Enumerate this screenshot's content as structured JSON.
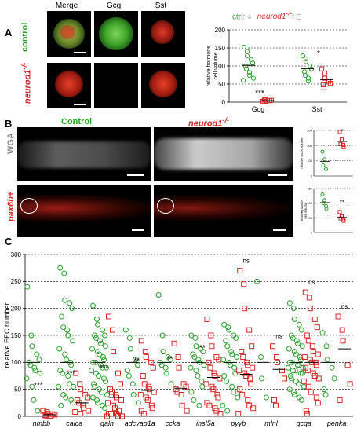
{
  "panels": {
    "a": {
      "letter": "A",
      "col_headers": [
        "Merge",
        "Gcg",
        "Sst"
      ],
      "row_labels": [
        "control",
        "neurod1"
      ],
      "row_label_sup": "-/-",
      "legend": {
        "ctrl_label": "ctrl:",
        "mut_label": "neurod1",
        "mut_sup": "-/-",
        "ctrl_color": "#2ca02c",
        "mut_color": "#d62728"
      }
    },
    "b": {
      "letter": "B",
      "col_headers": [
        "Control",
        "neurod1"
      ],
      "col_header_sup": "-/-",
      "row_labels": [
        "WGA",
        "pax6b+"
      ]
    },
    "c": {
      "letter": "C"
    }
  },
  "chart_data": [
    {
      "id": "A-hormone",
      "type": "scatter",
      "ylabel": "relative hormone cell volume",
      "categories": [
        "Gcg",
        "Sst"
      ],
      "ylim": [
        0,
        200
      ],
      "yticks": [
        0,
        50,
        100,
        150,
        200
      ],
      "grid": true,
      "series": [
        {
          "name": "ctrl",
          "color": "#2ca02c",
          "marker": "circle-open",
          "points": [
            [
              0,
              152
            ],
            [
              0,
              140
            ],
            [
              0,
              128
            ],
            [
              0,
              118
            ],
            [
              0,
              108
            ],
            [
              0,
              100
            ],
            [
              0,
              92
            ],
            [
              0,
              82
            ],
            [
              0,
              74
            ],
            [
              0,
              66
            ],
            [
              0,
              60
            ],
            [
              1,
              128
            ],
            [
              1,
              120
            ],
            [
              1,
              112
            ],
            [
              1,
              100
            ],
            [
              1,
              92
            ],
            [
              1,
              84
            ],
            [
              1,
              74
            ],
            [
              1,
              66
            ],
            [
              1,
              58
            ]
          ]
        },
        {
          "name": "neurod1-/-",
          "color": "#d62728",
          "marker": "square-open",
          "points": [
            [
              0,
              2
            ],
            [
              0,
              2
            ],
            [
              0,
              3
            ],
            [
              0,
              4
            ],
            [
              0,
              5
            ],
            [
              0,
              6
            ],
            [
              0,
              8
            ],
            [
              1,
              92
            ],
            [
              1,
              80
            ],
            [
              1,
              66
            ],
            [
              1,
              58
            ],
            [
              1,
              52
            ],
            [
              1,
              48
            ],
            [
              1,
              40
            ]
          ]
        }
      ],
      "annotations": [
        {
          "cat": 0,
          "y": 18,
          "text": "***"
        },
        {
          "cat": 1,
          "y": 128,
          "text": "*"
        }
      ]
    },
    {
      "id": "B-wga",
      "type": "scatter",
      "ylabel": "relative WGA volume",
      "ylim": [
        0,
        300
      ],
      "yticks": [
        0,
        100,
        200,
        300
      ],
      "series": [
        {
          "name": "ctrl",
          "color": "#2ca02c",
          "marker": "circle-open",
          "points": [
            [
              0,
              160
            ],
            [
              0,
              110
            ],
            [
              0,
              70
            ],
            [
              0,
              45
            ]
          ]
        },
        {
          "name": "neurod1-/-",
          "color": "#d62728",
          "marker": "square-open",
          "points": [
            [
              1,
              290
            ],
            [
              1,
              240
            ],
            [
              1,
              210
            ],
            [
              1,
              205
            ],
            [
              1,
              190
            ]
          ]
        }
      ],
      "annotations": [
        {
          "cat": 1,
          "y": 330,
          "text": "*"
        }
      ]
    },
    {
      "id": "B-pax6b",
      "type": "scatter",
      "ylabel": "relative pax6b+ cell volume",
      "ylim": [
        0,
        150
      ],
      "yticks": [
        0,
        50,
        100,
        150
      ],
      "series": [
        {
          "name": "ctrl",
          "color": "#2ca02c",
          "marker": "circle-open",
          "points": [
            [
              0,
              130
            ],
            [
              0,
              110
            ],
            [
              0,
              100
            ],
            [
              0,
              90
            ],
            [
              0,
              80
            ]
          ]
        },
        {
          "name": "neurod1-/-",
          "color": "#d62728",
          "marker": "square-open",
          "points": [
            [
              1,
              70
            ],
            [
              1,
              55
            ],
            [
              1,
              48
            ],
            [
              1,
              45
            ],
            [
              1,
              40
            ]
          ]
        }
      ],
      "annotations": [
        {
          "cat": 1,
          "y": 95,
          "text": "**"
        }
      ]
    },
    {
      "id": "C-eec",
      "type": "scatter",
      "ylabel": "relative EEC number",
      "categories": [
        "nmbb",
        "calca",
        "galn",
        "adcyap1a",
        "ccka",
        "insl5a",
        "pyyb",
        "mlnl",
        "gcga",
        "penka"
      ],
      "ylim": [
        0,
        300
      ],
      "yticks": [
        0,
        50,
        100,
        150,
        200,
        250,
        300
      ],
      "grid": true,
      "ctrl_means": [
        100,
        100,
        100,
        100,
        100,
        100,
        100,
        100,
        100,
        100
      ],
      "mut_means": [
        3,
        25,
        35,
        48,
        52,
        72,
        78,
        87,
        100,
        125
      ],
      "significance": [
        "***",
        "***",
        "***",
        "**",
        "**",
        "**",
        "ns",
        "ns",
        "ns",
        "ns"
      ],
      "ctrl_points": [
        [
          240,
          150,
          130,
          115,
          105,
          100,
          95,
          90,
          85,
          80,
          70,
          55,
          30,
          10
        ],
        [
          275,
          265,
          215,
          210,
          200,
          185,
          165,
          160,
          150,
          140,
          125,
          115,
          105,
          100,
          95,
          85,
          80,
          75,
          60,
          55,
          55,
          40,
          35,
          30,
          25,
          20
        ],
        [
          205,
          180,
          170,
          160,
          150,
          150,
          145,
          140,
          135,
          130,
          125,
          120,
          115,
          110,
          105,
          100,
          100,
          95,
          90,
          90,
          85,
          80,
          75,
          70,
          65,
          60,
          55,
          50,
          45,
          40,
          35,
          30,
          25,
          20,
          15
        ],
        [
          160,
          145,
          125,
          105,
          95,
          85,
          75,
          60,
          40,
          25
        ],
        [
          225,
          150,
          120,
          110,
          105,
          100,
          95,
          90,
          80,
          60
        ],
        [
          150,
          145,
          130,
          125,
          120,
          115,
          110,
          105,
          100,
          95,
          90,
          85,
          75,
          65,
          55,
          45,
          30,
          20
        ],
        [
          170,
          165,
          160,
          150,
          145,
          140,
          130,
          120,
          115,
          110,
          105,
          100,
          95,
          90,
          80,
          75,
          65,
          55,
          45,
          35,
          20,
          10
        ],
        [
          250,
          110,
          70,
          35
        ],
        [
          210,
          200,
          180,
          170,
          160,
          150,
          145,
          140,
          135,
          130,
          125,
          120,
          115,
          110,
          105,
          100,
          100,
          95,
          95,
          90,
          90,
          85,
          85,
          80,
          80,
          75,
          70,
          65,
          60,
          55,
          50,
          45,
          40,
          35,
          30
        ],
        [
          155,
          130,
          105,
          90,
          70,
          50,
          40
        ]
      ],
      "mut_points": [
        [
          10,
          8,
          5,
          4,
          3,
          2,
          1,
          1,
          0
        ],
        [
          80,
          60,
          50,
          40,
          35,
          30,
          25,
          20,
          15,
          10,
          8,
          5
        ],
        [
          185,
          160,
          120,
          80,
          60,
          50,
          45,
          40,
          35,
          30,
          25,
          20,
          15,
          10,
          10,
          5,
          5,
          5,
          0,
          0,
          0
        ],
        [
          140,
          120,
          110,
          100,
          90,
          75,
          60,
          55,
          50,
          45,
          40,
          35,
          30,
          20,
          15,
          10,
          5
        ],
        [
          135,
          110,
          90,
          60,
          55,
          50,
          45,
          40,
          20,
          10
        ],
        [
          180,
          150,
          130,
          110,
          105,
          100,
          90,
          80,
          75,
          70,
          60,
          55,
          50,
          40,
          35,
          25,
          20,
          15,
          10,
          5
        ],
        [
          270,
          245,
          200,
          160,
          130,
          120,
          110,
          100,
          95,
          90,
          85,
          80,
          75,
          70,
          60,
          50,
          40,
          30,
          20,
          15,
          5
        ],
        [
          130,
          110,
          100,
          85,
          70,
          30,
          20
        ],
        [
          230,
          220,
          200,
          180,
          165,
          150,
          140,
          130,
          120,
          115,
          110,
          105,
          100,
          100,
          95,
          90,
          85,
          80,
          75,
          70,
          65,
          55,
          45,
          35,
          25,
          10,
          5
        ],
        [
          185,
          160,
          140,
          95,
          60,
          30
        ]
      ]
    }
  ]
}
